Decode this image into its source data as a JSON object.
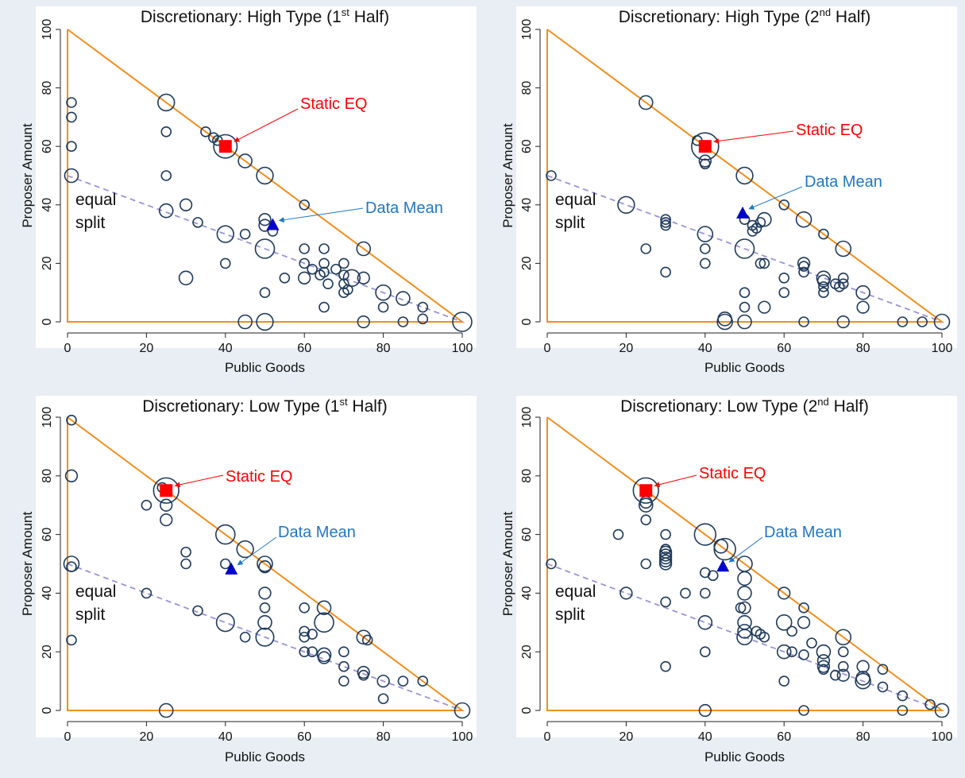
{
  "colors": {
    "figure_bg": "#e8eef3",
    "plot_bg": "#ffffff",
    "triangle": "#f28e1c",
    "equal_split": "#9a93d6",
    "bubble": "#1f3a5a",
    "static_eq": "#ff0000",
    "data_mean": "#0000cc",
    "data_mean_label": "#1f77c4",
    "static_label": "#ff0000"
  },
  "panels": [
    {
      "id": "high-1",
      "title": {
        "pre": "Discretionary: High Type (1",
        "sup": "st",
        "post": " Half)"
      }
    },
    {
      "id": "high-2",
      "title": {
        "pre": "Discretionary: High Type (2",
        "sup": "nd",
        "post": " Half)"
      }
    },
    {
      "id": "low-1",
      "title": {
        "pre": "Discretionary: Low Type (1",
        "sup": "st",
        "post": " Half)"
      }
    },
    {
      "id": "low-2",
      "title": {
        "pre": "Discretionary: Low Type (2",
        "sup": "nd",
        "post": " Half)"
      }
    }
  ],
  "labels": {
    "xlabel": "Public Goods",
    "ylabel": "Proposer Amount",
    "static_eq": "Static EQ",
    "data_mean": "Data Mean",
    "equal_split_1": "equal",
    "equal_split_2": "split"
  },
  "chart_data": [
    {
      "type": "scatter",
      "title": "Discretionary: High Type (1st Half)",
      "xlabel": "Public Goods",
      "ylabel": "Proposer Amount",
      "xlim": [
        0,
        100
      ],
      "ylim": [
        0,
        100
      ],
      "xticks": [
        0,
        20,
        40,
        60,
        80,
        100
      ],
      "yticks": [
        0,
        20,
        40,
        60,
        80,
        100
      ],
      "static_eq": [
        40,
        60
      ],
      "data_mean": [
        52,
        33
      ],
      "bubbles": [
        [
          1,
          75,
          1
        ],
        [
          1,
          70,
          1
        ],
        [
          1,
          60,
          1
        ],
        [
          1,
          50,
          2
        ],
        [
          25,
          75,
          3
        ],
        [
          25,
          65,
          1
        ],
        [
          25,
          50,
          1
        ],
        [
          25,
          38,
          2
        ],
        [
          30,
          40,
          1.5
        ],
        [
          30,
          15,
          2
        ],
        [
          33,
          34,
          1
        ],
        [
          35,
          65,
          1
        ],
        [
          37,
          63,
          1
        ],
        [
          38,
          62,
          1
        ],
        [
          40,
          60,
          6
        ],
        [
          40,
          30,
          3
        ],
        [
          40,
          20,
          1
        ],
        [
          45,
          55,
          2
        ],
        [
          45,
          30,
          1
        ],
        [
          45,
          0,
          2
        ],
        [
          50,
          50,
          3
        ],
        [
          50,
          35,
          1.5
        ],
        [
          50,
          33,
          1.5
        ],
        [
          52,
          31,
          1
        ],
        [
          50,
          25,
          4
        ],
        [
          50,
          10,
          1
        ],
        [
          50,
          0,
          3
        ],
        [
          55,
          15,
          1
        ],
        [
          60,
          40,
          1
        ],
        [
          60,
          25,
          1
        ],
        [
          60,
          20,
          1
        ],
        [
          60,
          15,
          1.5
        ],
        [
          62,
          18,
          1
        ],
        [
          64,
          16,
          1
        ],
        [
          65,
          25,
          1
        ],
        [
          65,
          20,
          1
        ],
        [
          65,
          17,
          1
        ],
        [
          65,
          5,
          1
        ],
        [
          66,
          13,
          1
        ],
        [
          68,
          18,
          1
        ],
        [
          70,
          20,
          1
        ],
        [
          70,
          16,
          1
        ],
        [
          70,
          13,
          1
        ],
        [
          70,
          10,
          1
        ],
        [
          71,
          11,
          1
        ],
        [
          72,
          15,
          3
        ],
        [
          75,
          25,
          2
        ],
        [
          75,
          15,
          1.5
        ],
        [
          75,
          0,
          1.5
        ],
        [
          80,
          10,
          2.5
        ],
        [
          80,
          5,
          1
        ],
        [
          85,
          8,
          2
        ],
        [
          85,
          0,
          1
        ],
        [
          90,
          5,
          1
        ],
        [
          90,
          1,
          1
        ],
        [
          100,
          0,
          4
        ]
      ]
    },
    {
      "type": "scatter",
      "title": "Discretionary: High Type (2nd Half)",
      "xlabel": "Public Goods",
      "ylabel": "Proposer Amount",
      "xlim": [
        0,
        100
      ],
      "ylim": [
        0,
        100
      ],
      "xticks": [
        0,
        20,
        40,
        60,
        80,
        100
      ],
      "yticks": [
        0,
        20,
        40,
        60,
        80,
        100
      ],
      "static_eq": [
        40,
        60
      ],
      "data_mean": [
        49.5,
        37
      ],
      "bubbles": [
        [
          1,
          50,
          1
        ],
        [
          20,
          40,
          3
        ],
        [
          25,
          75,
          2
        ],
        [
          25,
          25,
          1
        ],
        [
          30,
          35,
          1
        ],
        [
          30,
          34,
          1
        ],
        [
          30,
          33,
          1
        ],
        [
          30,
          17,
          1
        ],
        [
          38,
          62,
          1
        ],
        [
          40,
          60,
          8
        ],
        [
          40,
          55,
          1.5
        ],
        [
          40,
          54,
          1
        ],
        [
          40,
          30,
          2.5
        ],
        [
          40,
          25,
          1
        ],
        [
          40,
          20,
          1
        ],
        [
          50,
          50,
          3
        ],
        [
          50,
          35,
          1
        ],
        [
          52,
          33,
          1
        ],
        [
          52,
          31,
          1
        ],
        [
          53,
          32,
          1
        ],
        [
          54,
          34,
          1
        ],
        [
          55,
          35,
          2
        ],
        [
          50,
          25,
          4
        ],
        [
          54,
          20,
          1
        ],
        [
          55,
          20,
          1
        ],
        [
          50,
          10,
          1
        ],
        [
          50,
          5,
          1
        ],
        [
          55,
          5,
          1.5
        ],
        [
          45,
          1,
          2
        ],
        [
          45,
          0,
          2.5
        ],
        [
          50,
          0,
          2
        ],
        [
          60,
          40,
          1
        ],
        [
          60,
          15,
          1
        ],
        [
          60,
          10,
          1
        ],
        [
          65,
          35,
          2.5
        ],
        [
          65,
          20,
          1.5
        ],
        [
          65,
          19,
          1
        ],
        [
          65,
          17,
          1
        ],
        [
          65,
          0,
          1
        ],
        [
          70,
          30,
          1
        ],
        [
          70,
          15,
          2
        ],
        [
          70,
          14,
          1.5
        ],
        [
          70,
          12,
          1
        ],
        [
          70,
          10,
          1
        ],
        [
          73,
          13,
          1
        ],
        [
          74,
          12,
          1
        ],
        [
          75,
          25,
          2.5
        ],
        [
          75,
          15,
          1
        ],
        [
          75,
          13,
          1
        ],
        [
          75,
          0,
          1.5
        ],
        [
          80,
          10,
          2
        ],
        [
          80,
          5,
          1.5
        ],
        [
          90,
          0,
          1
        ],
        [
          95,
          0,
          1
        ],
        [
          100,
          0,
          2.5
        ]
      ]
    },
    {
      "type": "scatter",
      "title": "Discretionary: Low Type (1st Half)",
      "xlabel": "Public Goods",
      "ylabel": "Proposer Amount",
      "xlim": [
        0,
        100
      ],
      "ylim": [
        0,
        100
      ],
      "xticks": [
        0,
        20,
        40,
        60,
        80,
        100
      ],
      "yticks": [
        0,
        20,
        40,
        60,
        80,
        100
      ],
      "static_eq": [
        25,
        75
      ],
      "data_mean": [
        41.5,
        48
      ],
      "bubbles": [
        [
          1,
          99,
          1
        ],
        [
          1,
          80,
          1.5
        ],
        [
          1,
          50,
          2.5
        ],
        [
          1,
          49,
          1
        ],
        [
          1,
          24,
          1
        ],
        [
          20,
          70,
          1
        ],
        [
          20,
          40,
          1
        ],
        [
          24,
          76,
          1
        ],
        [
          25,
          75,
          7
        ],
        [
          25,
          70,
          1.5
        ],
        [
          25,
          65,
          1.5
        ],
        [
          25,
          0,
          2
        ],
        [
          30,
          54,
          1
        ],
        [
          30,
          50,
          1
        ],
        [
          33,
          34,
          1
        ],
        [
          40,
          60,
          4
        ],
        [
          40,
          50,
          1
        ],
        [
          40,
          30,
          3.5
        ],
        [
          45,
          55,
          3
        ],
        [
          45,
          25,
          1
        ],
        [
          50,
          50,
          2.5
        ],
        [
          50,
          49,
          1.5
        ],
        [
          50,
          40,
          1.5
        ],
        [
          50,
          35,
          1
        ],
        [
          50,
          30,
          2
        ],
        [
          50,
          25,
          3.5
        ],
        [
          60,
          35,
          1
        ],
        [
          60,
          27,
          1
        ],
        [
          60,
          25,
          1
        ],
        [
          60,
          20,
          1
        ],
        [
          62,
          26,
          1
        ],
        [
          62,
          20,
          1
        ],
        [
          65,
          35,
          2
        ],
        [
          65,
          30,
          4
        ],
        [
          65,
          19,
          2
        ],
        [
          65,
          18,
          1.5
        ],
        [
          70,
          20,
          1
        ],
        [
          70,
          15,
          1
        ],
        [
          70,
          10,
          1
        ],
        [
          75,
          25,
          2
        ],
        [
          76,
          24,
          1
        ],
        [
          75,
          13,
          1.5
        ],
        [
          75,
          12,
          1
        ],
        [
          80,
          10,
          1.5
        ],
        [
          80,
          4,
          1
        ],
        [
          85,
          10,
          1
        ],
        [
          90,
          10,
          1
        ],
        [
          100,
          0,
          2.5
        ]
      ]
    },
    {
      "type": "scatter",
      "title": "Discretionary: Low Type (2nd Half)",
      "xlabel": "Public Goods",
      "ylabel": "Proposer Amount",
      "xlim": [
        0,
        100
      ],
      "ylim": [
        0,
        100
      ],
      "xticks": [
        0,
        20,
        40,
        60,
        80,
        100
      ],
      "yticks": [
        0,
        20,
        40,
        60,
        80,
        100
      ],
      "static_eq": [
        25,
        75
      ],
      "data_mean": [
        44.5,
        49
      ],
      "bubbles": [
        [
          1,
          50,
          1
        ],
        [
          18,
          60,
          1
        ],
        [
          20,
          40,
          1.5
        ],
        [
          25,
          75,
          7
        ],
        [
          25,
          71,
          1.5
        ],
        [
          25,
          70,
          2
        ],
        [
          25,
          65,
          1
        ],
        [
          25,
          50,
          1
        ],
        [
          30,
          60,
          1
        ],
        [
          30,
          55,
          1
        ],
        [
          30,
          54,
          1.5
        ],
        [
          30,
          53,
          1.5
        ],
        [
          30,
          52,
          1.5
        ],
        [
          30,
          51,
          1.5
        ],
        [
          30,
          50,
          1.5
        ],
        [
          30,
          37,
          1
        ],
        [
          30,
          15,
          1
        ],
        [
          35,
          40,
          1
        ],
        [
          40,
          60,
          5
        ],
        [
          40,
          47,
          1
        ],
        [
          40,
          40,
          1
        ],
        [
          40,
          30,
          2
        ],
        [
          40,
          20,
          1
        ],
        [
          40,
          0,
          1.5
        ],
        [
          42,
          46,
          1
        ],
        [
          44,
          56,
          2
        ],
        [
          45,
          55,
          5
        ],
        [
          50,
          50,
          2.5
        ],
        [
          50,
          45,
          2
        ],
        [
          50,
          40,
          2
        ],
        [
          50,
          35,
          1.5
        ],
        [
          50,
          30,
          2
        ],
        [
          50,
          27,
          2
        ],
        [
          50,
          25,
          2.5
        ],
        [
          49,
          35,
          1
        ],
        [
          53,
          27,
          1
        ],
        [
          54,
          26,
          1
        ],
        [
          55,
          25,
          1
        ],
        [
          60,
          40,
          1.5
        ],
        [
          60,
          30,
          2.5
        ],
        [
          60,
          20,
          2
        ],
        [
          60,
          10,
          1
        ],
        [
          62,
          27,
          1
        ],
        [
          62,
          20,
          1
        ],
        [
          65,
          35,
          1
        ],
        [
          65,
          30,
          1.5
        ],
        [
          65,
          19,
          1
        ],
        [
          65,
          0,
          1
        ],
        [
          67,
          23,
          1
        ],
        [
          70,
          20,
          2
        ],
        [
          70,
          17,
          1.5
        ],
        [
          70,
          15,
          1.5
        ],
        [
          70,
          14,
          1
        ],
        [
          73,
          12,
          1
        ],
        [
          75,
          25,
          2.5
        ],
        [
          75,
          20,
          1
        ],
        [
          75,
          15,
          1
        ],
        [
          75,
          12,
          1.5
        ],
        [
          80,
          15,
          1.5
        ],
        [
          80,
          11,
          2
        ],
        [
          80,
          10,
          2.5
        ],
        [
          85,
          14,
          1
        ],
        [
          85,
          8,
          1
        ],
        [
          90,
          5,
          1
        ],
        [
          90,
          0,
          1
        ],
        [
          97,
          2,
          1
        ],
        [
          100,
          0,
          2
        ]
      ]
    }
  ]
}
